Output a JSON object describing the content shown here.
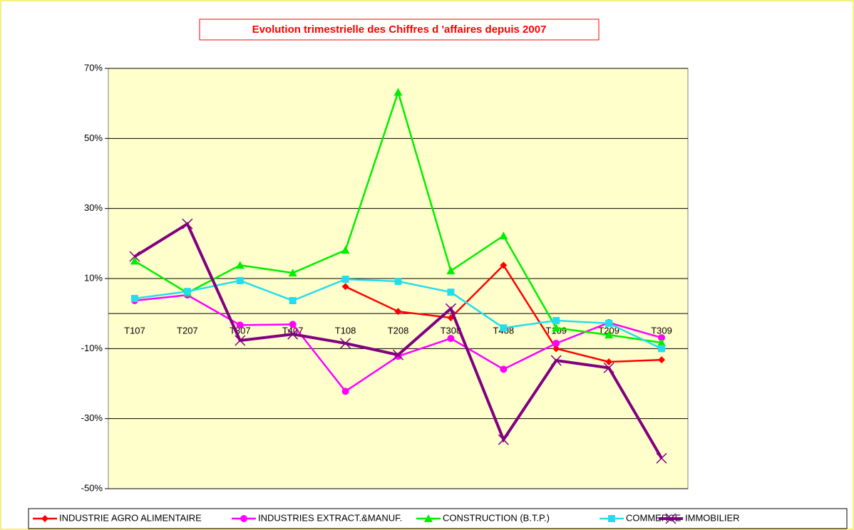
{
  "chart_data": {
    "type": "line",
    "title": "Evolution trimestrielle des Chiffres d 'affaires depuis 2007",
    "categories": [
      "T107",
      "T207",
      "T307",
      "T407",
      "T108",
      "T208",
      "T308",
      "T408",
      "T109",
      "T209",
      "T309"
    ],
    "series": [
      {
        "name": "INDUSTRIE AGRO ALIMENTAIRE",
        "color": "#ff0000",
        "marker": "diamond",
        "values": [
          null,
          null,
          null,
          null,
          7.7,
          0.6,
          -1.2,
          13.8,
          -10.0,
          -13.8,
          -13.2
        ]
      },
      {
        "name": "INDUSTRIES EXTRACT.&MANUF.",
        "color": "#ff00ff",
        "marker": "circle",
        "values": [
          3.7,
          5.3,
          -3.3,
          -3.1,
          -22.2,
          -12.2,
          -7.1,
          -15.9,
          -8.5,
          -2.6,
          -6.9
        ]
      },
      {
        "name": "CONSTRUCTION (B.T.P.)",
        "color": "#00ee00",
        "marker": "triangle",
        "values": [
          15.0,
          5.9,
          13.8,
          11.6,
          18.1,
          63.2,
          12.2,
          22.2,
          -4.1,
          -6.1,
          -8.3
        ]
      },
      {
        "name": "COMMERCE",
        "color": "#22ddee",
        "marker": "square",
        "values": [
          4.3,
          6.3,
          9.4,
          3.7,
          9.8,
          9.2,
          6.1,
          -4.1,
          -2.0,
          -2.8,
          -10.0
        ]
      },
      {
        "name": "IMMOBILIER",
        "color": "#800080",
        "marker": "x",
        "values": [
          16.3,
          25.6,
          -7.7,
          -5.9,
          -8.5,
          -11.8,
          1.4,
          -36.0,
          -13.4,
          -15.5,
          -41.3
        ]
      }
    ],
    "ylim": [
      -50,
      70
    ],
    "yticks": [
      {
        "value": 70,
        "label": "70%"
      },
      {
        "value": 50,
        "label": "50%"
      },
      {
        "value": 30,
        "label": "30%"
      },
      {
        "value": 10,
        "label": "10%"
      },
      {
        "value": -10,
        "label": "-10%"
      },
      {
        "value": -30,
        "label": "-30%"
      },
      {
        "value": -50,
        "label": "-50%"
      }
    ],
    "grid": true,
    "legend": "bottom"
  }
}
